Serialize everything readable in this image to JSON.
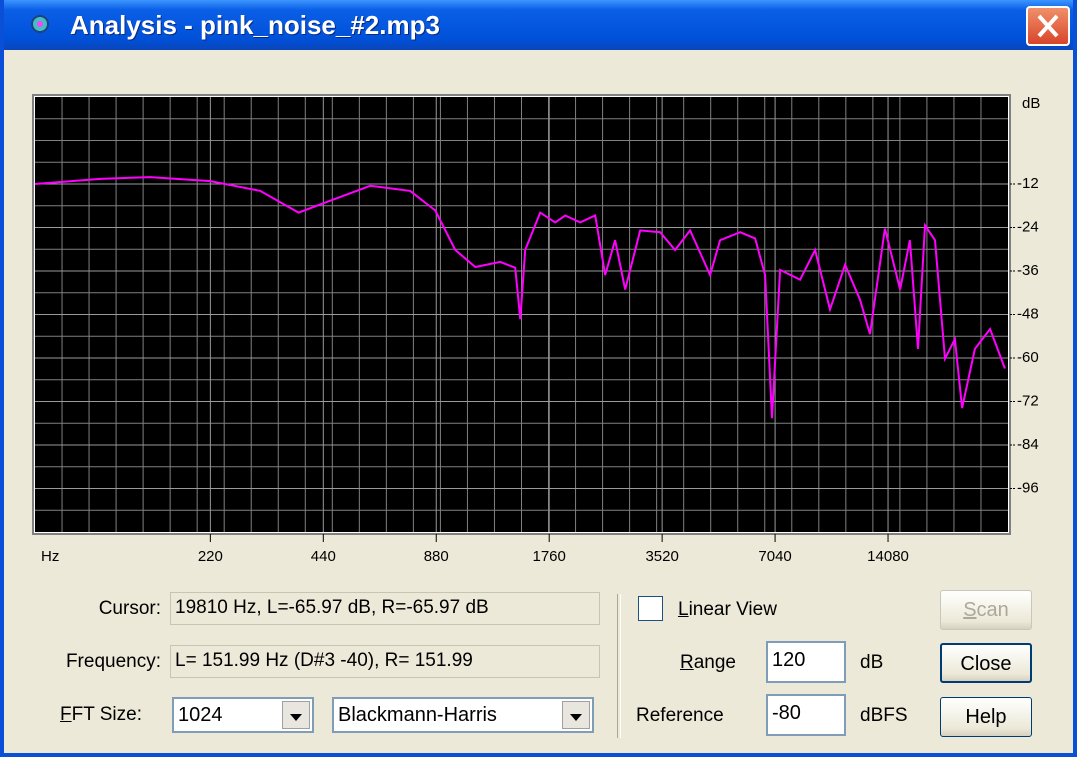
{
  "window": {
    "title": "Analysis - pink_noise_#2.mp3"
  },
  "chart_data": {
    "type": "line",
    "color": "#ff00ff",
    "xscale": "log",
    "grid": true,
    "x_unit": "Hz",
    "y_unit": "dB",
    "xlim": [
      75,
      29400
    ],
    "xticks": [
      220,
      440,
      880,
      1760,
      3520,
      7040,
      14080
    ],
    "ylim": [
      -108,
      12
    ],
    "yticks": [
      -12,
      -24,
      -36,
      -48,
      -60,
      -72,
      -84,
      -96
    ],
    "x": [
      75,
      112,
      152,
      220,
      299,
      378,
      459,
      587,
      750,
      875,
      989,
      1118,
      1303,
      1429,
      1474,
      1519,
      1665,
      1826,
      1942,
      2129,
      2334,
      2482,
      2638,
      2806,
      3076,
      3476,
      3812,
      4180,
      4725,
      5024,
      5678,
      6228,
      6622,
      6910,
      7259,
      8206,
      8998,
      9864,
      10816,
      11858,
      12606,
      13816,
      15158,
      16104,
      16918,
      17666,
      18788,
      19976,
      21230,
      22176,
      24002,
      26334,
      28842
    ],
    "values": [
      -12.0,
      -10.6,
      -10.1,
      -11.2,
      -13.9,
      -19.9,
      -16.6,
      -12.5,
      -13.9,
      -19.3,
      -30.2,
      -34.9,
      -33.5,
      -35.1,
      -49.3,
      -30.2,
      -19.9,
      -22.6,
      -20.7,
      -22.6,
      -20.7,
      -37.1,
      -27.5,
      -41.1,
      -24.8,
      -25.3,
      -30.2,
      -24.8,
      -37.1,
      -27.5,
      -25.3,
      -27.0,
      -37.1,
      -76.6,
      -35.7,
      -38.4,
      -30.2,
      -46.6,
      -34.3,
      -43.9,
      -53.4,
      -24.3,
      -41.1,
      -27.5,
      -57.5,
      -23.4,
      -27.5,
      -60.2,
      -54.8,
      -73.8,
      -57.5,
      -52.0,
      -62.9
    ]
  },
  "controls": {
    "cursor_label": "Cursor:",
    "cursor_value": "19810 Hz, L=-65.97 dB, R=-65.97 dB",
    "frequency_label": "Frequency:",
    "frequency_value": "L= 151.99 Hz (D#3 -40), R= 151.99",
    "fft_label": "FFT Size:",
    "fft_value": "1024",
    "window_value": "Blackmann-Harris",
    "linear_view": "Linear View",
    "range_label": "Range",
    "range_value": "120",
    "range_unit": "dB",
    "reference_label": "Reference",
    "reference_value": "-80",
    "reference_unit": "dBFS",
    "scan": "Scan",
    "close": "Close",
    "help": "Help"
  }
}
